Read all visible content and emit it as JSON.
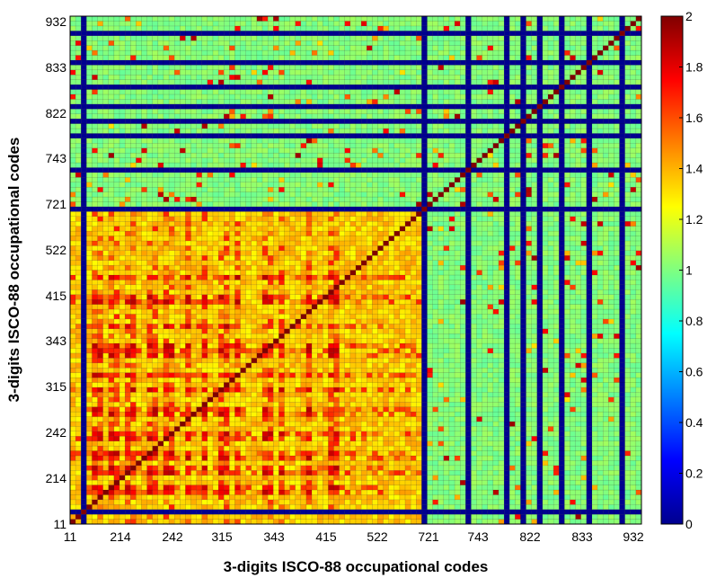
{
  "chart_data": {
    "type": "heatmap",
    "xlabel": "3-digits ISCO-88 occupational codes",
    "ylabel": "3-digits ISCO-88 occupational codes",
    "x_tick_labels": [
      "11",
      "214",
      "242",
      "315",
      "343",
      "415",
      "522",
      "721",
      "743",
      "822",
      "833",
      "932"
    ],
    "y_tick_labels": [
      "11",
      "214",
      "242",
      "315",
      "343",
      "415",
      "522",
      "721",
      "743",
      "822",
      "833",
      "932"
    ],
    "n_categories": 104,
    "colorbar": {
      "colormap": "jet",
      "range": [
        0,
        2
      ],
      "tick_labels": [
        "0",
        "0.2",
        "0.4",
        "0.6",
        "0.8",
        "1",
        "1.2",
        "1.4",
        "1.6",
        "1.8",
        "2"
      ]
    },
    "diagonal_value": 2,
    "zero_rows_cols_indices": [
      2,
      64,
      72,
      79,
      82,
      85,
      89,
      94,
      100
    ],
    "blocks": [
      {
        "region": "codes 11-522 x codes 11-522 (lower-left)",
        "typical_value": 1.35
      },
      {
        "region": "codes 11-522 x codes 721-932",
        "typical_value": 1.0
      },
      {
        "region": "codes 721-932 x codes 721-932",
        "typical_value": 1.05
      }
    ],
    "grid": true,
    "legend": "colorbar right"
  }
}
